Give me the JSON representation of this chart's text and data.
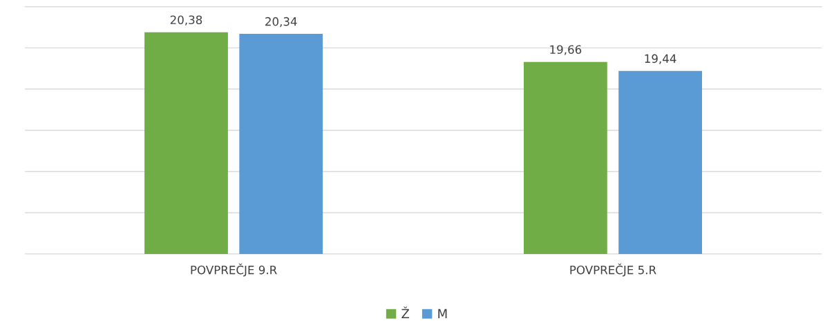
{
  "chart_data": {
    "type": "bar",
    "categories": [
      "POVPREČJE 9.R",
      "POVPREČJE 5.R"
    ],
    "series": [
      {
        "name": "Ž",
        "color": "#70ad47",
        "values": [
          20.38,
          19.66
        ],
        "value_labels": [
          "20,38",
          "19,66"
        ]
      },
      {
        "name": "M",
        "color": "#5b9bd5",
        "values": [
          20.34,
          19.44
        ],
        "value_labels": [
          "20,34",
          "19,44"
        ]
      }
    ],
    "ylim": [
      15,
      21
    ],
    "tick_labels": "x",
    "grid": "y",
    "legend": "bottom"
  }
}
